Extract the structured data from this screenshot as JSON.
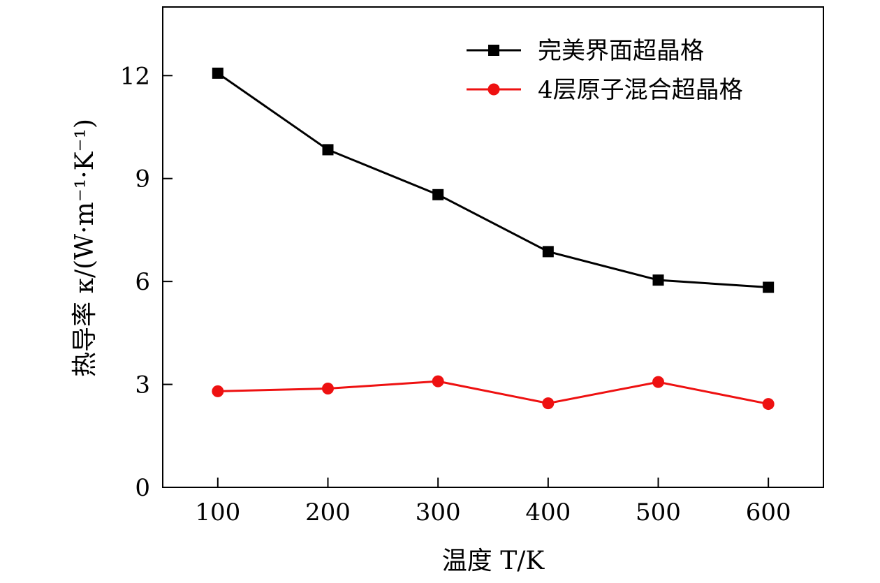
{
  "chart_data": {
    "type": "line",
    "title": "",
    "xlabel": "温度 T/K",
    "ylabel": "热导率 κ/(W·m⁻¹·K⁻¹)",
    "x": [
      100,
      200,
      300,
      400,
      500,
      600
    ],
    "xlim": [
      50,
      650
    ],
    "ylim": [
      0,
      14
    ],
    "xticks": [
      100,
      200,
      300,
      400,
      500,
      600
    ],
    "yticks": [
      0,
      3,
      6,
      9,
      12
    ],
    "grid": false,
    "legend_position": "top-right",
    "series": [
      {
        "name": "完美界面超晶格",
        "color": "#000000",
        "marker": "square",
        "values": [
          12.07,
          9.84,
          8.53,
          6.87,
          6.04,
          5.83
        ]
      },
      {
        "name": "4层原子混合超晶格",
        "color": "#ee1111",
        "marker": "circle",
        "values": [
          2.8,
          2.88,
          3.09,
          2.45,
          3.07,
          2.43
        ]
      }
    ]
  }
}
